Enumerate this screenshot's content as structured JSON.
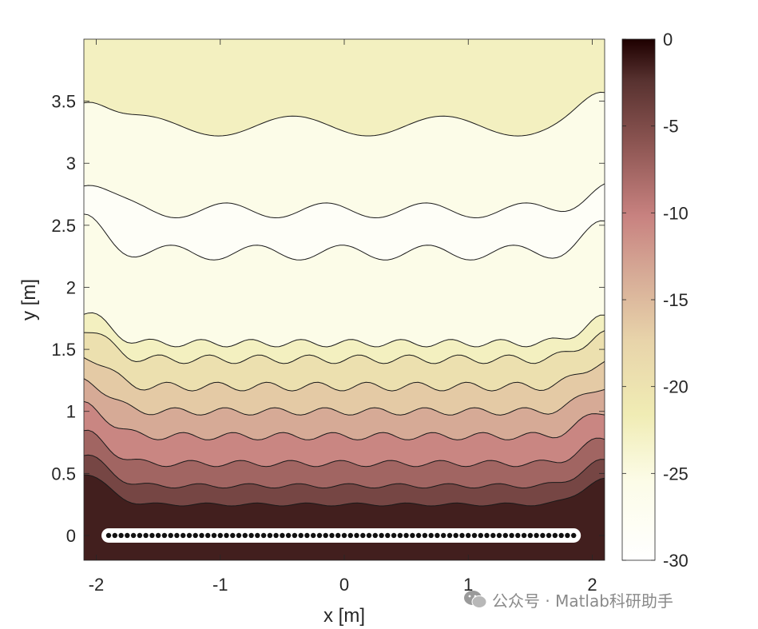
{
  "chart_data": {
    "type": "contour",
    "xlabel": "x [m]",
    "ylabel": "y [m]",
    "xlim": [
      -2.1,
      2.1
    ],
    "ylim": [
      -0.2,
      4.0
    ],
    "xticks": [
      -2,
      -1,
      0,
      1,
      2
    ],
    "xtick_labels": [
      "-2",
      "-1",
      "0",
      "1",
      "2"
    ],
    "yticks": [
      0,
      0.5,
      1,
      1.5,
      2,
      2.5,
      3,
      3.5
    ],
    "ytick_labels": [
      "0",
      "0.5",
      "1",
      "1.5",
      "2",
      "2.5",
      "3",
      "3.5"
    ],
    "colorbar": {
      "range": [
        -30,
        0
      ],
      "ticks": [
        0,
        -5,
        -10,
        -15,
        -20,
        -25,
        -30
      ],
      "tick_labels": [
        "0",
        "-5",
        "-10",
        "-15",
        "-20",
        "-25",
        "-30"
      ],
      "colormap": "pink (reversed)"
    },
    "source_array": {
      "x_start": -1.9,
      "x_end": 1.85,
      "y": 0,
      "count": 76
    },
    "contour_bands": [
      {
        "level": -3,
        "y_top": 0.25,
        "amplitude": 0.012,
        "wave": 12
      },
      {
        "level": -6,
        "y_top": 0.4,
        "amplitude": 0.018,
        "wave": 12
      },
      {
        "level": -9,
        "y_top": 0.58,
        "amplitude": 0.025,
        "wave": 12
      },
      {
        "level": -12,
        "y_top": 0.8,
        "amplitude": 0.03,
        "wave": 12
      },
      {
        "level": -15,
        "y_top": 1.0,
        "amplitude": 0.03,
        "wave": 12
      },
      {
        "level": -18,
        "y_top": 1.2,
        "amplitude": 0.035,
        "wave": 12
      },
      {
        "level": -21,
        "y_top": 1.42,
        "amplitude": 0.035,
        "wave": 12
      },
      {
        "level": -24,
        "y_top": 1.55,
        "amplitude": 0.03,
        "wave": 12
      },
      {
        "level": -27,
        "y_top": 2.28,
        "amplitude": 0.06,
        "wave": 7
      },
      {
        "level": -24,
        "y_top": 2.62,
        "amplitude": 0.06,
        "wave": 6
      },
      {
        "level": -21,
        "y_top": 3.3,
        "amplitude": 0.08,
        "wave": 4
      }
    ],
    "grid": false
  },
  "watermark": {
    "text": "公众号 · Matlab科研助手"
  }
}
